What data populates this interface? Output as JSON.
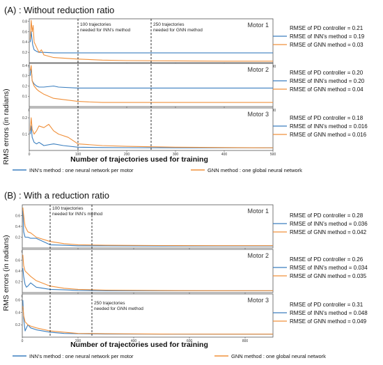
{
  "colors": {
    "inn": "#3a7ebf",
    "gnn": "#f0903a",
    "frame": "#555555",
    "vline": "#000000"
  },
  "chart_data": [
    {
      "type": "line",
      "title": "(A) : Without reduction ratio",
      "ylabel": "RMS errors (in radians)",
      "xlabel": "Number of trajectories used for training",
      "legend": [
        {
          "key": "inn",
          "label": "INN’s method : one neural network per motor"
        },
        {
          "key": "gnn",
          "label": "GNN method : one global neural network"
        }
      ],
      "vlines": [
        {
          "x": 100,
          "label1": "100 trajectories",
          "label2": "needed for INN’s method",
          "subplot": 0
        },
        {
          "x": 250,
          "label1": "250 trajectories",
          "label2": "needed for GNN method",
          "subplot": 0
        }
      ],
      "xlim": [
        0,
        500
      ],
      "xticks": [
        0,
        100,
        200,
        300,
        400,
        500
      ],
      "subplots": [
        {
          "name": "Motor 1",
          "ylim": [
            0,
            0.85
          ],
          "yticks": [
            0.2,
            0.4,
            0.6,
            0.8
          ],
          "rmse": [
            "RMSE of PD controller = 0.21",
            "RMSE of INN’s method = 0.19",
            "RMSE of GNN method = 0.03"
          ],
          "series": [
            {
              "key": "inn",
              "x": [
                2,
                4,
                7,
                10,
                15,
                20,
                30,
                50,
                100,
                150,
                200,
                300,
                400,
                500
              ],
              "y": [
                0.4,
                0.6,
                0.35,
                0.25,
                0.22,
                0.2,
                0.2,
                0.19,
                0.19,
                0.19,
                0.19,
                0.19,
                0.19,
                0.19
              ]
            },
            {
              "key": "gnn",
              "x": [
                2,
                4,
                6,
                8,
                10,
                15,
                20,
                25,
                30,
                50,
                100,
                150,
                200,
                300,
                400,
                500
              ],
              "y": [
                0.45,
                0.82,
                0.6,
                0.72,
                0.4,
                0.3,
                0.2,
                0.25,
                0.15,
                0.1,
                0.07,
                0.05,
                0.04,
                0.035,
                0.03,
                0.03
              ]
            }
          ]
        },
        {
          "name": "Motor 2",
          "ylim": [
            0,
            0.42
          ],
          "yticks": [
            0.1,
            0.2,
            0.3,
            0.4
          ],
          "rmse": [
            "RMSE of PD controller = 0.20",
            "RMSE of INN’s method = 0.20",
            "RMSE of GNN method = 0.04"
          ],
          "series": [
            {
              "key": "inn",
              "x": [
                2,
                4,
                6,
                10,
                15,
                20,
                30,
                50,
                60,
                100,
                150,
                200,
                300,
                400,
                500
              ],
              "y": [
                0.3,
                0.38,
                0.25,
                0.22,
                0.2,
                0.19,
                0.19,
                0.2,
                0.19,
                0.18,
                0.18,
                0.18,
                0.18,
                0.18,
                0.18
              ]
            },
            {
              "key": "gnn",
              "x": [
                2,
                4,
                6,
                10,
                15,
                20,
                30,
                50,
                100,
                150,
                200,
                300,
                400,
                500
              ],
              "y": [
                0.35,
                0.4,
                0.25,
                0.2,
                0.17,
                0.15,
                0.12,
                0.08,
                0.05,
                0.04,
                0.04,
                0.04,
                0.04,
                0.04
              ]
            }
          ]
        },
        {
          "name": "Motor 3",
          "ylim": [
            0,
            0.26
          ],
          "yticks": [
            0.1,
            0.2
          ],
          "rmse": [
            "RMSE of PD controller = 0.18",
            "RMSE of INN’s method = 0.016",
            "RMSE of GNN method = 0.016"
          ],
          "series": [
            {
              "key": "inn",
              "x": [
                2,
                4,
                6,
                10,
                15,
                20,
                30,
                50,
                70,
                100,
                150,
                200,
                300,
                400,
                500
              ],
              "y": [
                0.1,
                0.15,
                0.08,
                0.05,
                0.04,
                0.05,
                0.03,
                0.04,
                0.03,
                0.02,
                0.018,
                0.017,
                0.016,
                0.016,
                0.016
              ]
            },
            {
              "key": "gnn",
              "x": [
                2,
                4,
                6,
                10,
                15,
                20,
                30,
                40,
                50,
                60,
                80,
                100,
                150,
                200,
                300,
                400,
                500
              ],
              "y": [
                0.12,
                0.2,
                0.13,
                0.1,
                0.12,
                0.15,
                0.14,
                0.16,
                0.12,
                0.1,
                0.08,
                0.04,
                0.03,
                0.025,
                0.02,
                0.018,
                0.016
              ]
            }
          ]
        }
      ]
    },
    {
      "type": "line",
      "title": "(B) : With a reduction ratio",
      "ylabel": "RMS errors (in radians)",
      "xlabel": "Number of trajectories used for training",
      "legend": [
        {
          "key": "inn",
          "label": "INN’s method : one neural network per motor"
        },
        {
          "key": "gnn",
          "label": "GNN method : one global neural network"
        }
      ],
      "vlines": [
        {
          "x": 100,
          "label1": "100 trajectories",
          "label2": "needed for INN’s method",
          "subplot": 0
        },
        {
          "x": 250,
          "label1": "250 trajectories",
          "label2": "needed for GNN method",
          "subplot": 2
        }
      ],
      "xlim": [
        0,
        900
      ],
      "xticks": [
        0,
        200,
        400,
        600,
        800
      ],
      "subplots": [
        {
          "name": "Motor 1",
          "ylim": [
            0,
            0.8
          ],
          "yticks": [
            0.2,
            0.4,
            0.6
          ],
          "rmse": [
            "RMSE of PD controller = 0.28",
            "RMSE of INN’s method = 0.036",
            "RMSE of GNN method = 0.042"
          ],
          "series": [
            {
              "key": "inn",
              "x": [
                2,
                5,
                10,
                20,
                30,
                50,
                100,
                150,
                200,
                300,
                500,
                700,
                900
              ],
              "y": [
                0.7,
                0.3,
                0.2,
                0.2,
                0.18,
                0.18,
                0.06,
                0.05,
                0.04,
                0.04,
                0.036,
                0.036,
                0.036
              ]
            },
            {
              "key": "gnn",
              "x": [
                2,
                5,
                10,
                20,
                30,
                50,
                100,
                150,
                200,
                300,
                500,
                700,
                900
              ],
              "y": [
                0.75,
                0.6,
                0.4,
                0.3,
                0.28,
                0.2,
                0.12,
                0.08,
                0.06,
                0.05,
                0.045,
                0.042,
                0.042
              ]
            }
          ]
        },
        {
          "name": "Motor 2",
          "ylim": [
            0,
            0.8
          ],
          "yticks": [
            0.2,
            0.4,
            0.6
          ],
          "rmse": [
            "RMSE of PD controller = 0.26",
            "RMSE of INN’s method = 0.034",
            "RMSE of GNN method = 0.035"
          ],
          "series": [
            {
              "key": "inn",
              "x": [
                2,
                5,
                10,
                15,
                20,
                30,
                50,
                100,
                150,
                200,
                300,
                500,
                700,
                900
              ],
              "y": [
                0.45,
                0.3,
                0.15,
                0.1,
                0.12,
                0.18,
                0.1,
                0.06,
                0.05,
                0.04,
                0.035,
                0.034,
                0.034,
                0.034
              ]
            },
            {
              "key": "gnn",
              "x": [
                2,
                5,
                10,
                20,
                30,
                50,
                100,
                150,
                200,
                300,
                500,
                700,
                900
              ],
              "y": [
                0.7,
                0.5,
                0.4,
                0.35,
                0.3,
                0.22,
                0.12,
                0.08,
                0.06,
                0.045,
                0.038,
                0.035,
                0.035
              ]
            }
          ]
        },
        {
          "name": "Motor 3",
          "ylim": [
            0,
            0.7
          ],
          "yticks": [
            0.2,
            0.4,
            0.6
          ],
          "rmse": [
            "RMSE of PD controller = 0.31",
            "RMSE of INN’s method = 0.048",
            "RMSE of GNN method = 0.049"
          ],
          "series": [
            {
              "key": "inn",
              "x": [
                2,
                5,
                10,
                20,
                30,
                50,
                100,
                150,
                200,
                300,
                500,
                700,
                900
              ],
              "y": [
                0.6,
                0.3,
                0.1,
                0.2,
                0.15,
                0.12,
                0.08,
                0.06,
                0.055,
                0.05,
                0.048,
                0.048,
                0.048
              ]
            },
            {
              "key": "gnn",
              "x": [
                2,
                5,
                10,
                20,
                30,
                50,
                100,
                150,
                200,
                300,
                500,
                700,
                900
              ],
              "y": [
                0.5,
                0.35,
                0.25,
                0.2,
                0.18,
                0.15,
                0.1,
                0.08,
                0.06,
                0.055,
                0.05,
                0.049,
                0.049
              ]
            }
          ]
        }
      ]
    }
  ]
}
